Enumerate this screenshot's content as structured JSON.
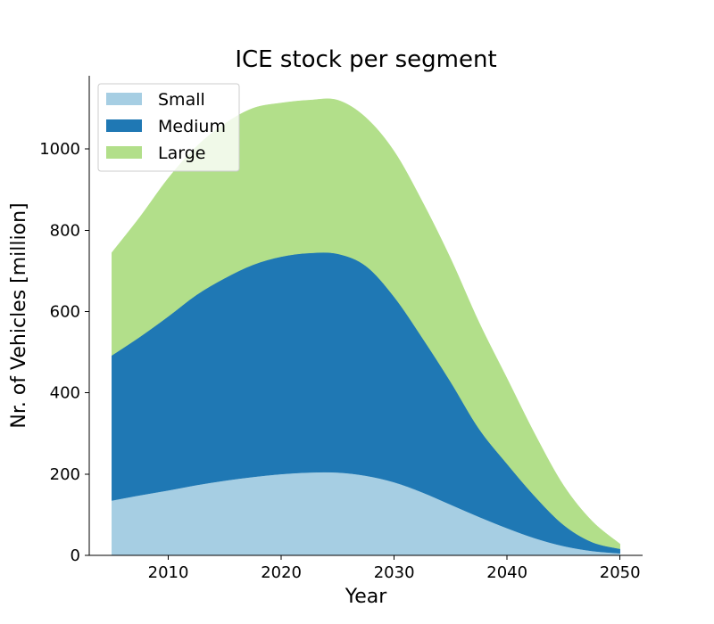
{
  "chart_data": {
    "type": "area",
    "stacked": true,
    "title": "ICE stock per segment",
    "xlabel": "Year",
    "ylabel": "Nr. of Vehicles [million]",
    "xlim": [
      2003,
      2052
    ],
    "ylim": [
      0,
      1180
    ],
    "xticks": [
      2010,
      2020,
      2030,
      2040,
      2050
    ],
    "yticks": [
      0,
      200,
      400,
      600,
      800,
      1000
    ],
    "grid": false,
    "legend_position": "top-left",
    "x": [
      2005,
      2007.5,
      2010,
      2012.5,
      2015,
      2017.5,
      2020,
      2022.5,
      2025,
      2027.5,
      2030,
      2032.5,
      2035,
      2037.5,
      2040,
      2042.5,
      2045,
      2047.5,
      2050
    ],
    "series": [
      {
        "name": "Small",
        "color": "#a6cee3",
        "values": [
          135,
          148,
          160,
          173,
          184,
          193,
          200,
          204,
          204,
          196,
          180,
          155,
          125,
          95,
          67,
          42,
          23,
          11,
          5
        ]
      },
      {
        "name": "Medium",
        "color": "#1f78b4",
        "values": [
          357,
          390,
          428,
          468,
          498,
          522,
          535,
          540,
          538,
          516,
          456,
          380,
          302,
          217,
          158,
          102,
          52,
          22,
          11
        ]
      },
      {
        "name": "Large",
        "color": "#b2df8a",
        "values": [
          253,
          295,
          340,
          365,
          380,
          385,
          378,
          376,
          378,
          365,
          358,
          335,
          303,
          262,
          210,
          152,
          97,
          52,
          12
        ]
      }
    ]
  }
}
